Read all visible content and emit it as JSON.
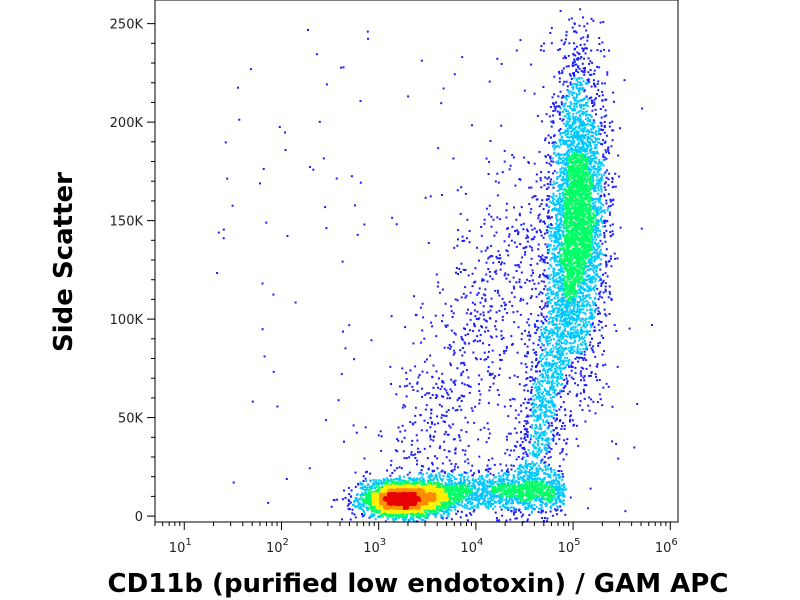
{
  "chart_data": {
    "type": "scatter",
    "subtype": "flow-cytometry density dot plot",
    "xlabel": "CD11b (purified low endotoxin) / GAM APC",
    "ylabel": "Side Scatter",
    "x_scale": "log",
    "xlim": [
      5,
      1200000
    ],
    "ylim": [
      -3000,
      262000
    ],
    "x_ticks": [
      {
        "value": 10,
        "base": "10",
        "exp": "1"
      },
      {
        "value": 100,
        "base": "10",
        "exp": "2"
      },
      {
        "value": 1000,
        "base": "10",
        "exp": "3"
      },
      {
        "value": 10000,
        "base": "10",
        "exp": "4"
      },
      {
        "value": 100000,
        "base": "10",
        "exp": "5"
      },
      {
        "value": 1000000,
        "base": "10",
        "exp": "6"
      }
    ],
    "y_ticks": [
      {
        "value": 0,
        "label": "0"
      },
      {
        "value": 50000,
        "label": "50K"
      },
      {
        "value": 100000,
        "label": "100K"
      },
      {
        "value": 150000,
        "label": "150K"
      },
      {
        "value": 200000,
        "label": "200K"
      },
      {
        "value": 250000,
        "label": "250K"
      }
    ],
    "populations": [
      {
        "description": "CD11b-low, low side scatter",
        "x_center": 1800,
        "y_center": 9000,
        "density": "highest"
      },
      {
        "description": "CD11b-high, high side scatter",
        "x_center": 120000,
        "y_center": 150000,
        "density": "medium"
      },
      {
        "description": "intermediate / transition",
        "x_center": 20000,
        "y_center": 15000,
        "density": "medium"
      }
    ],
    "colormap": [
      "#1a1aff",
      "#00c8ff",
      "#00ff64",
      "#fff000",
      "#ff8c00",
      "#e60000"
    ],
    "grid": false,
    "legend": "none"
  }
}
